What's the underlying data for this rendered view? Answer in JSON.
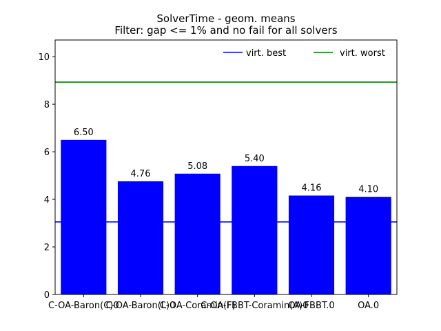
{
  "chart_data": {
    "type": "bar",
    "title": "SolverTime - geom. means",
    "subtitle": "Filter: gap <= 1% and no fail for all solvers",
    "categories": [
      "C-OA-Baron(C)0",
      "C-OA-Baron(L)0",
      "C-OA-Coramin(F)",
      "C-OA-FBBT-Coramin(A)0",
      "OA-FBBT.0",
      "OA.0"
    ],
    "values": [
      6.5,
      4.76,
      5.08,
      5.4,
      4.16,
      4.1
    ],
    "value_labels": [
      "6.50",
      "4.76",
      "5.08",
      "5.40",
      "4.16",
      "4.10"
    ],
    "bar_color": "#0000ff",
    "ylim": [
      0,
      10.7
    ],
    "yticks": [
      0,
      2,
      4,
      6,
      8,
      10
    ],
    "ytick_labels": [
      "0",
      "2",
      "4",
      "6",
      "8",
      "10"
    ],
    "reference_lines": [
      {
        "name": "virt. best",
        "value": 3.05,
        "color": "#0000ff"
      },
      {
        "name": "virt. worst",
        "value": 8.93,
        "color": "#008000"
      }
    ],
    "legend_position": "top-right",
    "grid": false
  }
}
